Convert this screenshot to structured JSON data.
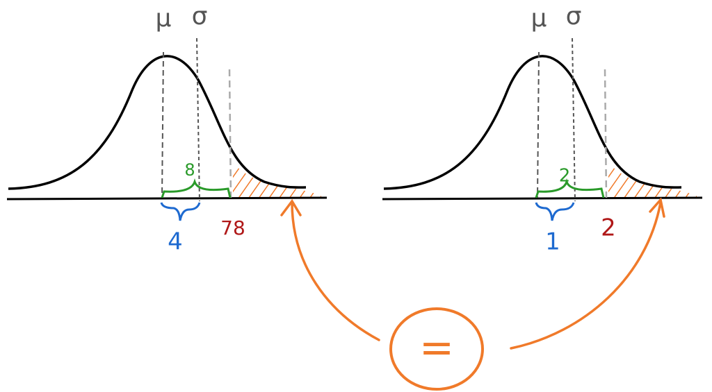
{
  "panels": [
    {
      "mu": "μ",
      "sigma": "σ",
      "green_label": "8",
      "blue_label": "4",
      "red_label": "78"
    },
    {
      "mu": "μ",
      "sigma": "σ",
      "green_label": "2",
      "blue_label": "1",
      "red_label": "2"
    }
  ],
  "equals": "="
}
